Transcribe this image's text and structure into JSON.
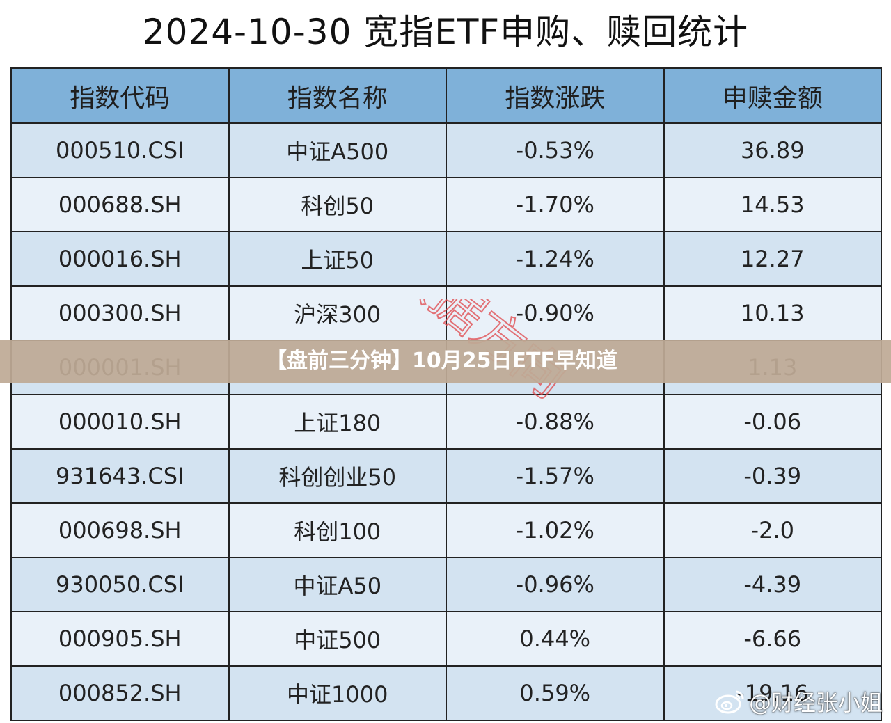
{
  "title": "2024-10-30 宽指ETF申购、赎回统计",
  "table": {
    "headers": [
      "指数代码",
      "指数名称",
      "指数涨跌",
      "申赎金额"
    ],
    "rows": [
      [
        "000510.CSI",
        "中证A500",
        "-0.53%",
        "36.89"
      ],
      [
        "000688.SH",
        "科创50",
        "-1.70%",
        "14.53"
      ],
      [
        "000016.SH",
        "上证50",
        "-1.24%",
        "12.27"
      ],
      [
        "000300.SH",
        "沪深300",
        "-0.90%",
        "10.13"
      ],
      [
        "000001.SH",
        "",
        "",
        "1.13"
      ],
      [
        "000010.SH",
        "上证180",
        "-0.88%",
        "-0.06"
      ],
      [
        "931643.CSI",
        "科创创业50",
        "-1.57%",
        "-0.39"
      ],
      [
        "000698.SH",
        "科创100",
        "-1.02%",
        "-2.0"
      ],
      [
        "930050.CSI",
        "中证A50",
        "-0.96%",
        "-4.39"
      ],
      [
        "000905.SH",
        "中证500",
        "0.44%",
        "-6.66"
      ],
      [
        "000852.SH",
        "中证1000",
        "0.59%",
        "-19.16"
      ]
    ]
  },
  "banner": {
    "text": "【盘前三分钟】10月25日ETF早知道"
  },
  "watermarks": {
    "stamp_text": "数据方向",
    "weibo_text": "@财经张小姐",
    "weibo_icon": "weibo-icon"
  },
  "colors": {
    "header_bg": "#7fb1d9",
    "row_dark": "#d3e3f1",
    "row_light": "#e9f1f9",
    "banner_bg": "#beaa96",
    "stamp": "#e0464a"
  }
}
